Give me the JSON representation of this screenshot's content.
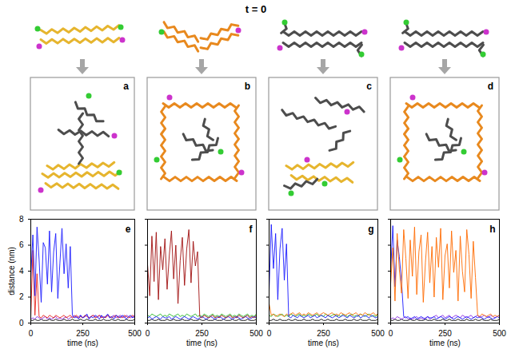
{
  "title": "t = 0",
  "panels": [
    {
      "label": "a"
    },
    {
      "label": "b"
    },
    {
      "label": "c"
    },
    {
      "label": "d"
    }
  ],
  "chart_data": [
    {
      "type": "line",
      "title": "e",
      "x_label": "time (ns)",
      "y_label": "distance (nm)",
      "xlim": [
        0,
        500
      ],
      "xticks": [
        0,
        250,
        500
      ],
      "ylim": [
        0,
        8
      ],
      "yticks": [
        0,
        2,
        4,
        6,
        8
      ],
      "x": [
        0,
        10,
        20,
        30,
        40,
        50,
        60,
        70,
        80,
        90,
        100,
        110,
        120,
        130,
        140,
        150,
        160,
        170,
        180,
        190,
        200,
        210,
        220,
        230,
        240,
        250,
        260,
        270,
        280,
        290,
        300,
        310,
        320,
        330,
        340,
        350,
        360,
        370,
        380,
        390,
        400,
        410,
        420,
        430,
        440,
        450,
        460,
        470,
        480,
        490,
        500
      ],
      "series": [
        {
          "color": "#000000",
          "values": [
            0.2,
            0.2,
            0.3,
            0.2,
            0.2,
            0.3,
            0.2,
            0.2,
            0.2,
            0.3,
            0.2,
            0.2,
            0.3,
            0.2,
            0.2,
            0.2,
            0.3,
            0.2,
            0.2,
            0.2,
            0.3,
            0.2,
            0.2,
            0.2,
            0.3,
            0.2,
            0.2,
            0.3,
            0.2,
            0.2,
            0.2,
            0.3,
            0.2,
            0.2,
            0.2,
            0.3,
            0.2,
            0.2,
            0.2,
            0.3,
            0.2,
            0.2,
            0.3,
            0.2,
            0.2,
            0.2,
            0.3,
            0.2,
            0.2,
            0.2,
            0.3
          ]
        },
        {
          "color": "#8a2be2",
          "values": [
            0.3,
            0.4,
            0.3,
            0.5,
            0.4,
            0.3,
            0.4,
            0.5,
            0.3,
            0.4,
            0.3,
            0.4,
            0.5,
            0.3,
            0.4,
            0.3,
            0.4,
            0.5,
            0.3,
            0.4,
            0.5,
            0.6,
            0.4,
            0.5,
            0.6,
            0.4,
            0.5,
            0.6,
            0.4,
            0.5,
            0.6,
            0.5,
            0.4,
            0.6,
            0.5,
            0.4,
            0.5,
            0.6,
            0.4,
            0.5,
            0.6,
            0.4,
            0.5,
            0.6,
            0.5,
            0.4,
            0.6,
            0.5,
            0.4,
            0.5,
            0.6
          ]
        },
        {
          "color": "#e8221a",
          "values": [
            0.4,
            5.6,
            0.6,
            3.8,
            0.5,
            0.4,
            0.6,
            0.5,
            0.4,
            0.6,
            0.5,
            0.4,
            0.6,
            0.5,
            0.4,
            0.5,
            0.6,
            0.4,
            0.5,
            0.6,
            0.4,
            0.5,
            0.6,
            0.4,
            0.5,
            0.4,
            0.6,
            0.5,
            0.4,
            0.5,
            0.6,
            0.4,
            0.5,
            0.6,
            0.4,
            0.5,
            0.4,
            0.6,
            0.5,
            0.4,
            0.5,
            0.6,
            0.4,
            0.5,
            0.4,
            0.6,
            0.5,
            0.4,
            0.5,
            0.6,
            0.4
          ]
        },
        {
          "color": "#1a1aff",
          "values": [
            3.5,
            6.8,
            2.1,
            7.4,
            4.9,
            1.6,
            6.2,
            5.8,
            3.0,
            7.1,
            2.4,
            5.5,
            6.9,
            1.9,
            4.6,
            7.3,
            3.8,
            6.1,
            2.7,
            5.9,
            0.6,
            0.4,
            0.5,
            0.3,
            0.6,
            0.4,
            0.5,
            0.7,
            0.3,
            0.5,
            0.4,
            0.6,
            0.5,
            0.3,
            0.6,
            0.4,
            0.5,
            0.7,
            0.4,
            0.5,
            0.3,
            0.6,
            0.5,
            0.4,
            0.6,
            0.5,
            0.3,
            0.5,
            0.6,
            0.4,
            0.5
          ]
        }
      ]
    },
    {
      "type": "line",
      "title": "f",
      "x_label": "time (ns)",
      "tick_labels": "x",
      "xlim": [
        0,
        500
      ],
      "xticks": [
        0,
        250,
        500
      ],
      "ylim": [
        0,
        8
      ],
      "yticks": [
        0,
        2,
        4,
        6,
        8
      ],
      "x": [
        0,
        10,
        20,
        30,
        40,
        50,
        60,
        70,
        80,
        90,
        100,
        110,
        120,
        130,
        140,
        150,
        160,
        170,
        180,
        190,
        200,
        210,
        220,
        230,
        240,
        250,
        260,
        270,
        280,
        290,
        300,
        310,
        320,
        330,
        340,
        350,
        360,
        370,
        380,
        390,
        400,
        410,
        420,
        430,
        440,
        450,
        460,
        470,
        480,
        490,
        500
      ],
      "series": [
        {
          "color": "#000000",
          "values": [
            0.2,
            0.2,
            0.3,
            0.2,
            0.2,
            0.3,
            0.2,
            0.2,
            0.2,
            0.3,
            0.2,
            0.2,
            0.3,
            0.2,
            0.2,
            0.2,
            0.3,
            0.2,
            0.2,
            0.2,
            0.3,
            0.2,
            0.2,
            0.2,
            0.3,
            0.2,
            0.2,
            0.3,
            0.2,
            0.2,
            0.2,
            0.3,
            0.2,
            0.2,
            0.2,
            0.3,
            0.2,
            0.2,
            0.2,
            0.3,
            0.2,
            0.2,
            0.3,
            0.2,
            0.2,
            0.2,
            0.3,
            0.2,
            0.2,
            0.2,
            0.3
          ]
        },
        {
          "color": "#22b822",
          "values": [
            0.6,
            0.5,
            0.7,
            0.6,
            0.5,
            0.6,
            0.7,
            0.5,
            0.6,
            0.5,
            0.7,
            0.6,
            0.5,
            0.6,
            0.7,
            0.5,
            0.6,
            0.5,
            0.7,
            0.6,
            0.5,
            0.6,
            0.7,
            0.5,
            0.6,
            0.5,
            0.7,
            0.6,
            0.5,
            0.6,
            0.7,
            0.5,
            0.6,
            0.5,
            0.7,
            0.6,
            0.5,
            0.6,
            0.7,
            0.5,
            0.6,
            0.5,
            0.7,
            0.6,
            0.5,
            0.6,
            0.7,
            0.5,
            0.6,
            0.5,
            0.7
          ]
        },
        {
          "color": "#1a1aff",
          "values": [
            0.4,
            0.5,
            0.3,
            0.4,
            0.5,
            0.4,
            0.3,
            0.5,
            0.4,
            0.4,
            0.5,
            0.3,
            0.4,
            0.5,
            0.4,
            0.3,
            0.4,
            0.5,
            0.4,
            0.3,
            0.4,
            0.5,
            0.4,
            0.3,
            0.4,
            0.5,
            0.4,
            0.3,
            0.4,
            0.5,
            0.4,
            0.3,
            0.4,
            0.5,
            0.4,
            0.3,
            0.4,
            0.5,
            0.4,
            0.3,
            0.4,
            0.5,
            0.4,
            0.3,
            0.4,
            0.5,
            0.4,
            0.3,
            0.4,
            0.5,
            0.4
          ]
        },
        {
          "color": "#a01010",
          "values": [
            4.5,
            2.1,
            6.7,
            3.2,
            7.0,
            1.8,
            5.9,
            4.1,
            6.5,
            2.6,
            5.2,
            7.1,
            3.4,
            6.0,
            1.5,
            4.8,
            6.6,
            2.9,
            5.7,
            7.2,
            3.1,
            6.3,
            4.4,
            5.5,
            0.5,
            0.4,
            0.6,
            0.5,
            0.4,
            0.5,
            0.6,
            0.4,
            0.5,
            0.4,
            0.6,
            0.5,
            0.4,
            0.5,
            0.6,
            0.4,
            0.5,
            0.4,
            0.6,
            0.5,
            0.4,
            0.5,
            0.6,
            0.4,
            0.5,
            0.4,
            0.6
          ]
        }
      ]
    },
    {
      "type": "line",
      "title": "g",
      "x_label": "time (ns)",
      "tick_labels": "x",
      "xlim": [
        0,
        500
      ],
      "xticks": [
        0,
        250,
        500
      ],
      "ylim": [
        0,
        8
      ],
      "yticks": [
        0,
        2,
        4,
        6,
        8
      ],
      "x": [
        0,
        10,
        20,
        30,
        40,
        50,
        60,
        70,
        80,
        90,
        100,
        110,
        120,
        130,
        140,
        150,
        160,
        170,
        180,
        190,
        200,
        210,
        220,
        230,
        240,
        250,
        260,
        270,
        280,
        290,
        300,
        310,
        320,
        330,
        340,
        350,
        360,
        370,
        380,
        390,
        400,
        410,
        420,
        430,
        440,
        450,
        460,
        470,
        480,
        490,
        500
      ],
      "series": [
        {
          "color": "#000000",
          "values": [
            0.2,
            0.2,
            0.3,
            0.2,
            0.2,
            0.3,
            0.2,
            0.2,
            0.2,
            0.3,
            0.2,
            0.2,
            0.3,
            0.2,
            0.2,
            0.2,
            0.3,
            0.2,
            0.2,
            0.2,
            0.3,
            0.2,
            0.2,
            0.2,
            0.3,
            0.2,
            0.2,
            0.3,
            0.2,
            0.2,
            0.2,
            0.3,
            0.2,
            0.2,
            0.2,
            0.3,
            0.2,
            0.2,
            0.2,
            0.3,
            0.2,
            0.2,
            0.3,
            0.2,
            0.2,
            0.2,
            0.3,
            0.2,
            0.2,
            0.2,
            0.3
          ]
        },
        {
          "color": "#22b822",
          "values": [
            0.6,
            0.5,
            0.7,
            0.6,
            0.5,
            0.6,
            0.7,
            0.5,
            0.6,
            0.5,
            0.7,
            0.6,
            0.5,
            0.6,
            0.7,
            0.5,
            0.6,
            0.5,
            0.7,
            0.6,
            0.5,
            0.6,
            0.7,
            0.5,
            0.6,
            0.5,
            0.7,
            0.6,
            0.5,
            0.6,
            0.7,
            0.5,
            0.6,
            0.5,
            0.7,
            0.6,
            0.5,
            0.6,
            0.7,
            0.5,
            0.6,
            0.5,
            0.7,
            0.6,
            0.5,
            0.6,
            0.7,
            0.5,
            0.6,
            0.5,
            0.7
          ]
        },
        {
          "color": "#ff6a00",
          "values": [
            1.5,
            0.6,
            0.7,
            0.5,
            0.6,
            0.7,
            0.6,
            0.5,
            0.7,
            0.6,
            0.7,
            0.8,
            0.6,
            0.7,
            0.8,
            0.6,
            0.7,
            0.6,
            0.8,
            0.7,
            0.6,
            0.7,
            0.8,
            0.6,
            0.7,
            0.8,
            0.7,
            0.6,
            0.7,
            0.8,
            0.6,
            0.7,
            0.6,
            0.8,
            0.7,
            0.6,
            0.7,
            0.8,
            0.6,
            0.7,
            0.8,
            0.6,
            0.7,
            0.6,
            0.8,
            0.7,
            0.6,
            0.7,
            0.8,
            0.6,
            0.7
          ]
        },
        {
          "color": "#1a1aff",
          "values": [
            2.5,
            7.6,
            4.2,
            6.9,
            1.8,
            5.7,
            7.3,
            3.3,
            6.1,
            0.5,
            0.4,
            0.6,
            0.5,
            0.4,
            0.6,
            0.5,
            0.4,
            0.5,
            0.6,
            0.4,
            0.5,
            0.6,
            0.4,
            0.5,
            0.6,
            0.5,
            0.4,
            0.6,
            0.5,
            0.4,
            0.5,
            0.6,
            0.4,
            0.5,
            0.6,
            0.5,
            0.4,
            0.6,
            0.5,
            0.4,
            0.5,
            0.6,
            0.4,
            0.5,
            0.6,
            0.5,
            0.4,
            0.6,
            0.5,
            0.4,
            0.5
          ]
        }
      ]
    },
    {
      "type": "line",
      "title": "h",
      "x_label": "time (ns)",
      "tick_labels": "x",
      "xlim": [
        0,
        500
      ],
      "xticks": [
        0,
        250,
        500
      ],
      "ylim": [
        0,
        8
      ],
      "yticks": [
        0,
        2,
        4,
        6,
        8
      ],
      "x": [
        0,
        10,
        20,
        30,
        40,
        50,
        60,
        70,
        80,
        90,
        100,
        110,
        120,
        130,
        140,
        150,
        160,
        170,
        180,
        190,
        200,
        210,
        220,
        230,
        240,
        250,
        260,
        270,
        280,
        290,
        300,
        310,
        320,
        330,
        340,
        350,
        360,
        370,
        380,
        390,
        400,
        410,
        420,
        430,
        440,
        450,
        460,
        470,
        480,
        490,
        500
      ],
      "series": [
        {
          "color": "#000000",
          "values": [
            0.2,
            0.2,
            0.3,
            0.2,
            0.2,
            0.3,
            0.2,
            0.2,
            0.2,
            0.3,
            0.2,
            0.2,
            0.3,
            0.2,
            0.2,
            0.2,
            0.3,
            0.2,
            0.2,
            0.2,
            0.3,
            0.2,
            0.2,
            0.2,
            0.3,
            0.2,
            0.2,
            0.3,
            0.2,
            0.2,
            0.2,
            0.3,
            0.2,
            0.2,
            0.2,
            0.3,
            0.2,
            0.2,
            0.2,
            0.3,
            0.2,
            0.2,
            0.3,
            0.2,
            0.2,
            0.2,
            0.3,
            0.2,
            0.2,
            0.2,
            0.3
          ]
        },
        {
          "color": "#8a2be2",
          "values": [
            0.3,
            0.4,
            0.3,
            0.5,
            0.4,
            0.3,
            0.4,
            0.5,
            0.3,
            0.4,
            0.3,
            0.4,
            0.5,
            0.3,
            0.4,
            0.3,
            0.4,
            0.5,
            0.3,
            0.4,
            0.5,
            0.6,
            0.4,
            0.5,
            0.6,
            0.4,
            0.5,
            0.6,
            0.4,
            0.5,
            0.6,
            0.5,
            0.4,
            0.6,
            0.5,
            0.4,
            0.5,
            0.6,
            0.4,
            0.5,
            0.6,
            0.4,
            0.5,
            0.6,
            0.5,
            0.4,
            0.6,
            0.5,
            0.4,
            0.5,
            0.6
          ]
        },
        {
          "color": "#1a1aff",
          "values": [
            4.0,
            7.5,
            2.8,
            6.4,
            5.1,
            3.2,
            0.5,
            0.4,
            0.5,
            0.3,
            0.4,
            0.5,
            0.3,
            0.4,
            0.5,
            0.4,
            0.3,
            0.5,
            0.4,
            0.4,
            0.5,
            0.3,
            0.4,
            0.5,
            0.4,
            0.3,
            0.4,
            0.5,
            0.4,
            0.3,
            0.4,
            0.5,
            0.4,
            0.3,
            0.4,
            0.5,
            0.4,
            0.3,
            0.4,
            0.5,
            0.4,
            0.5,
            0.4,
            0.3,
            0.4,
            0.5,
            0.4,
            0.3,
            0.4,
            0.5,
            0.4
          ]
        },
        {
          "color": "#ff6a00",
          "values": [
            3.0,
            5.8,
            1.7,
            6.9,
            4.1,
            2.3,
            7.2,
            5.0,
            1.9,
            6.4,
            3.6,
            7.4,
            2.2,
            5.5,
            6.8,
            1.6,
            4.7,
            7.0,
            3.1,
            5.9,
            2.0,
            6.6,
            4.3,
            7.3,
            1.8,
            5.2,
            6.1,
            2.7,
            7.1,
            3.9,
            5.6,
            1.7,
            6.7,
            4.0,
            2.4,
            7.2,
            5.3,
            1.9,
            6.3,
            3.5,
            0.6,
            0.5,
            0.7,
            0.6,
            0.5,
            0.6,
            0.7,
            0.5,
            0.6,
            0.5,
            0.6
          ]
        }
      ]
    }
  ]
}
